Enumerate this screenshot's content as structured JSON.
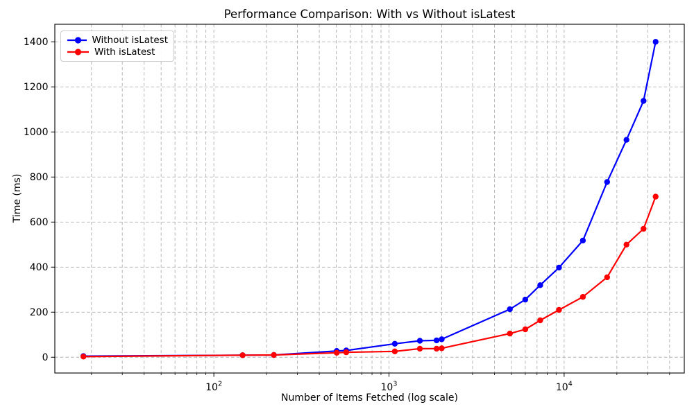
{
  "chart_data": {
    "type": "line",
    "title": "Performance Comparison: With vs Without isLatest",
    "xlabel": "Number of Items Fetched (log scale)",
    "ylabel": "Time (ms)",
    "x_scale": "log",
    "grid": {
      "which": "both",
      "style": "dashed",
      "color": "#b0b0b0"
    },
    "legend_position": "upper-left",
    "x": [
      18,
      146,
      220,
      503,
      570,
      1080,
      1500,
      1870,
      2000,
      4900,
      6000,
      7300,
      9350,
      12800,
      17600,
      22700,
      28400,
      33300
    ],
    "series": [
      {
        "name": "Without isLatest",
        "color": "#0000ff",
        "values": [
          5,
          9,
          10,
          28,
          30,
          60,
          73,
          75,
          80,
          213,
          256,
          320,
          398,
          518,
          778,
          965,
          1138,
          1400
        ]
      },
      {
        "name": "With isLatest",
        "color": "#ff0000",
        "values": [
          3,
          9,
          10,
          20,
          22,
          26,
          38,
          38,
          40,
          105,
          124,
          164,
          210,
          268,
          355,
          500,
          570,
          713
        ]
      }
    ],
    "y_ticks": [
      0,
      200,
      400,
      600,
      800,
      1000,
      1200,
      1400
    ],
    "x_ticks": [
      {
        "label_base": "10",
        "label_exp": "2",
        "value": 100
      },
      {
        "label_base": "10",
        "label_exp": "3",
        "value": 1000
      },
      {
        "label_base": "10",
        "label_exp": "4",
        "value": 10000
      }
    ],
    "xlim_log10": [
      1.092,
      4.686
    ],
    "ylim": [
      -70,
      1478
    ],
    "axis_color": "#000000"
  }
}
